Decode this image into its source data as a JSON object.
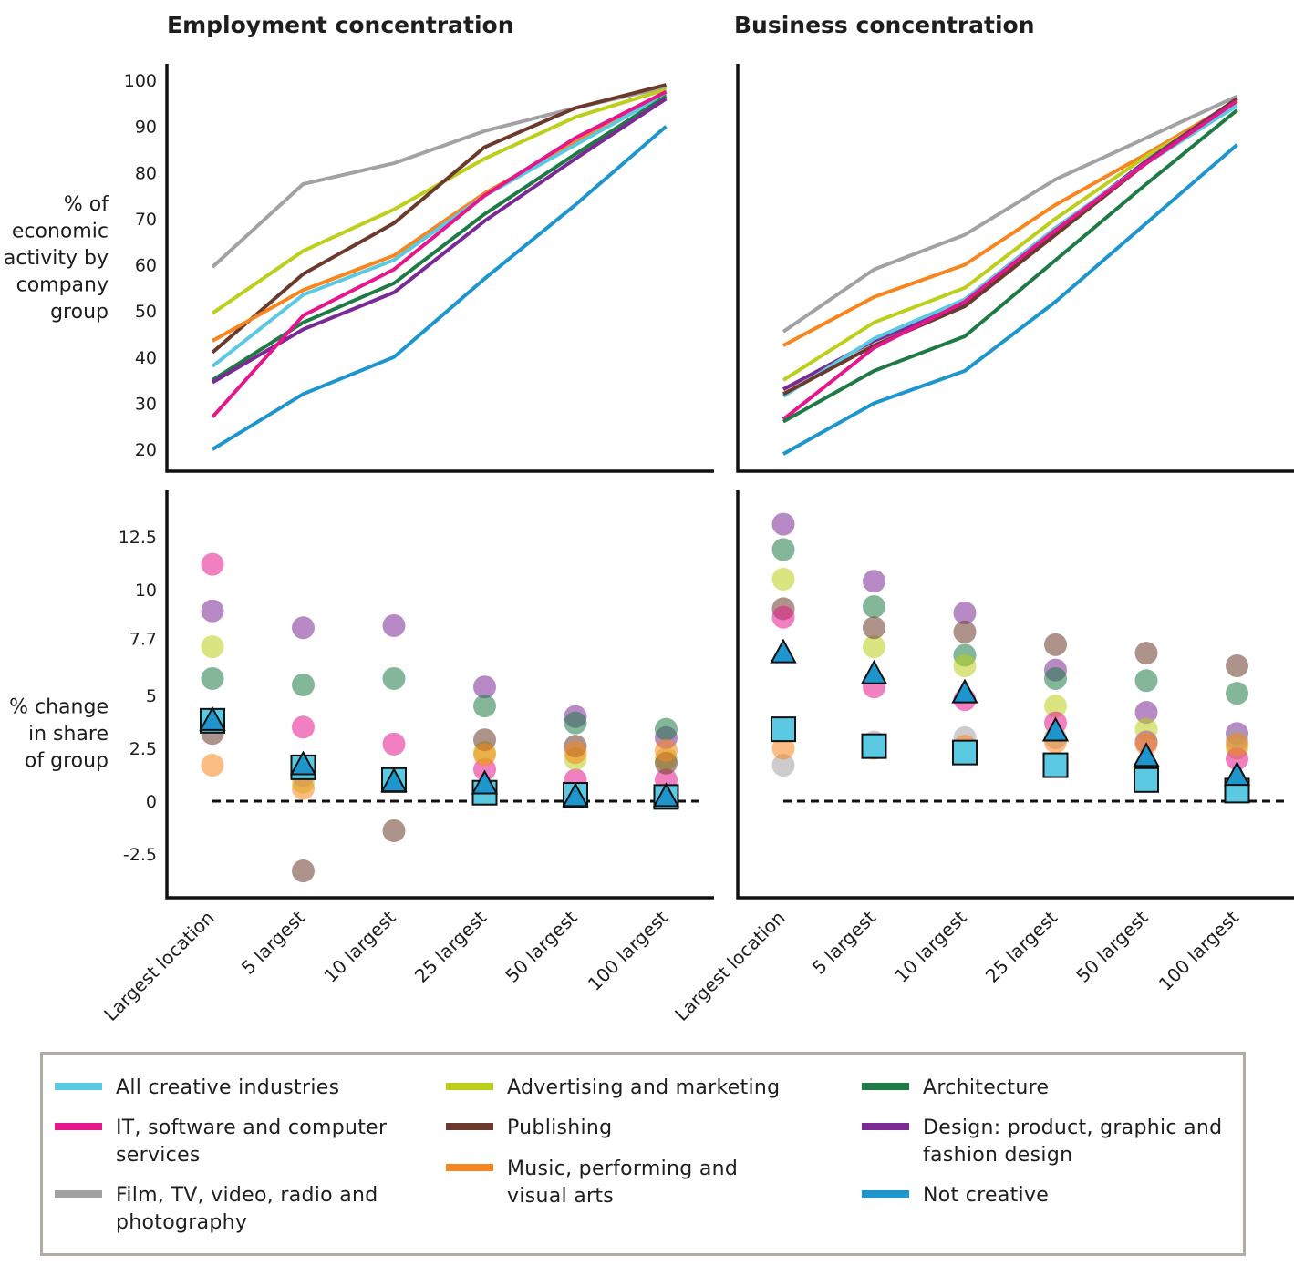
{
  "colors": {
    "all": "#5bc9e1",
    "it": "#e5178c",
    "film": "#a2a2a5",
    "adv": "#bccf1a",
    "pub": "#6c3a2c",
    "music": "#f7861e",
    "arch": "#1f7a45",
    "design": "#7b2a95",
    "notcreative": "#1e96cd"
  },
  "legend": [
    {
      "key": "all",
      "label": "All creative industries"
    },
    {
      "key": "it",
      "label": "IT, software and computer services"
    },
    {
      "key": "film",
      "label": "Film, TV, video, radio and photography"
    },
    {
      "key": "adv",
      "label": "Advertising and marketing"
    },
    {
      "key": "pub",
      "label": "Publishing"
    },
    {
      "key": "music",
      "label": "Music, performing and visual arts"
    },
    {
      "key": "arch",
      "label": "Architecture"
    },
    {
      "key": "design",
      "label": "Design: product, graphic and fashion design"
    },
    {
      "key": "notcreative",
      "label": "Not creative"
    }
  ],
  "chart_data": [
    {
      "type": "line",
      "title": "Employment concentration",
      "ylabel": "% of economic activity by company group",
      "ylim": [
        20,
        100
      ],
      "yticks": [
        "20",
        "30",
        "40",
        "50",
        "60",
        "70",
        "80",
        "90",
        "100"
      ],
      "categories": [
        "Largest location",
        "5 largest",
        "10 largest",
        "25 largest",
        "50 largest",
        "100 largest"
      ],
      "series": [
        {
          "key": "film",
          "name": "Film, TV, video, radio and photography",
          "values": [
            59.5,
            77.5,
            82,
            89,
            94,
            98.5
          ]
        },
        {
          "key": "adv",
          "name": "Advertising and marketing",
          "values": [
            49.5,
            63,
            72,
            83,
            92,
            98
          ]
        },
        {
          "key": "pub",
          "name": "Publishing",
          "values": [
            41,
            58,
            69,
            85.5,
            94,
            99
          ]
        },
        {
          "key": "music",
          "name": "Music, performing and visual arts",
          "values": [
            43.5,
            54.5,
            62,
            75.5,
            86.5,
            97.5
          ]
        },
        {
          "key": "all",
          "name": "All creative industries",
          "values": [
            38,
            53.5,
            61,
            75,
            86,
            97
          ]
        },
        {
          "key": "arch",
          "name": "Architecture",
          "values": [
            35,
            47.5,
            56,
            71,
            84,
            96.5
          ]
        },
        {
          "key": "design",
          "name": "Design: product, graphic and fashion design",
          "values": [
            34.5,
            46,
            54,
            69.5,
            83,
            96
          ]
        },
        {
          "key": "it",
          "name": "IT, software and computer services",
          "values": [
            27,
            49,
            59,
            75,
            87.5,
            97.5
          ]
        },
        {
          "key": "notcreative",
          "name": "Not creative",
          "values": [
            20,
            32,
            40,
            57,
            73,
            90
          ]
        }
      ]
    },
    {
      "type": "line",
      "title": "Business concentration",
      "ylim": [
        20,
        100
      ],
      "categories": [
        "Largest location",
        "5 largest",
        "10 largest",
        "25 largest",
        "50 largest",
        "100 largest"
      ],
      "series": [
        {
          "key": "film",
          "name": "Film, TV, video, radio and photography",
          "values": [
            45.5,
            59,
            66.5,
            78.5,
            87.5,
            96.5
          ]
        },
        {
          "key": "music",
          "name": "Music, performing and visual arts",
          "values": [
            42.5,
            53,
            60,
            73,
            84,
            95.5
          ]
        },
        {
          "key": "adv",
          "name": "Advertising and marketing",
          "values": [
            35,
            47.5,
            55,
            70,
            83.5,
            95
          ]
        },
        {
          "key": "design",
          "name": "Design: product, graphic and fashion design",
          "values": [
            33,
            43.5,
            51.5,
            67.5,
            82.5,
            96
          ]
        },
        {
          "key": "all",
          "name": "All creative industries",
          "values": [
            31.5,
            44,
            52.5,
            68,
            82,
            94.5
          ]
        },
        {
          "key": "pub",
          "name": "Publishing",
          "values": [
            32,
            42.5,
            51,
            66.5,
            82,
            96
          ]
        },
        {
          "key": "it",
          "name": "IT, software and computer services",
          "values": [
            26.5,
            42,
            52,
            67.5,
            82,
            95.5
          ]
        },
        {
          "key": "arch",
          "name": "Architecture",
          "values": [
            26,
            37,
            44.5,
            61,
            77.5,
            93.5
          ]
        },
        {
          "key": "notcreative",
          "name": "Not creative",
          "values": [
            19,
            30,
            37,
            52,
            69,
            86
          ]
        }
      ]
    },
    {
      "type": "scatter",
      "ylabel": "% change in share of group",
      "ylim": [
        -4.5,
        15
      ],
      "yticks": [
        "-2.5",
        "0",
        "2.5",
        "5",
        "7.7",
        "10",
        "12.5"
      ],
      "baseline": 0,
      "categories": [
        "Largest location",
        "5 largest",
        "10 largest",
        "25 largest",
        "50 largest",
        "100 largest"
      ],
      "series": [
        {
          "key": "it",
          "name": "IT, software and computer services",
          "values": [
            11.2,
            3.5,
            2.7,
            1.5,
            1.0,
            1.0
          ]
        },
        {
          "key": "design",
          "name": "Design: product, graphic and fashion design",
          "values": [
            9.0,
            8.2,
            8.3,
            5.4,
            4.0,
            3.0
          ]
        },
        {
          "key": "adv",
          "name": "Advertising and marketing",
          "values": [
            7.3,
            0.9,
            1.0,
            2.3,
            2.0,
            2.0
          ]
        },
        {
          "key": "arch",
          "name": "Architecture",
          "values": [
            5.8,
            5.5,
            5.8,
            4.5,
            3.7,
            3.4
          ]
        },
        {
          "key": "pub",
          "name": "Publishing",
          "values": [
            3.2,
            -3.3,
            -1.4,
            2.9,
            2.6,
            1.8
          ]
        },
        {
          "key": "film",
          "name": "Film, TV, video, radio and photography",
          "values": [
            3.6,
            1.2,
            1.0,
            0.5,
            0.2,
            0.2
          ]
        },
        {
          "key": "music",
          "name": "Music, performing and visual arts",
          "values": [
            1.7,
            0.6,
            1.0,
            2.2,
            2.3,
            2.4
          ]
        },
        {
          "key": "all",
          "name": "All creative industries",
          "values": [
            3.8,
            1.6,
            1.0,
            0.4,
            0.3,
            0.2
          ]
        },
        {
          "key": "notcreative",
          "name": "Not creative",
          "values": [
            3.8,
            1.7,
            0.9,
            0.8,
            0.2,
            0.2
          ]
        }
      ]
    },
    {
      "type": "scatter",
      "ylim": [
        -4.5,
        15
      ],
      "baseline": 0,
      "categories": [
        "Largest location",
        "5 largest",
        "10 largest",
        "25 largest",
        "50 largest",
        "100 largest"
      ],
      "series": [
        {
          "key": "design",
          "name": "Design: product, graphic and fashion design",
          "values": [
            13.1,
            10.4,
            8.9,
            6.2,
            4.2,
            3.2
          ]
        },
        {
          "key": "arch",
          "name": "Architecture",
          "values": [
            11.9,
            9.2,
            6.9,
            5.8,
            5.7,
            5.1
          ]
        },
        {
          "key": "adv",
          "name": "Advertising and marketing",
          "values": [
            10.5,
            7.3,
            6.4,
            4.5,
            3.4,
            2.5
          ]
        },
        {
          "key": "pub",
          "name": "Publishing",
          "values": [
            9.1,
            8.2,
            8.0,
            7.4,
            7.0,
            6.4
          ]
        },
        {
          "key": "it",
          "name": "IT, software and computer services",
          "values": [
            8.7,
            5.4,
            4.8,
            3.7,
            2.8,
            2.0
          ]
        },
        {
          "key": "film",
          "name": "Film, TV, video, radio and photography",
          "values": [
            1.7,
            2.8,
            3.0,
            3.0,
            2.8,
            2.9
          ]
        },
        {
          "key": "music",
          "name": "Music, performing and visual arts",
          "values": [
            2.5,
            2.5,
            2.6,
            2.8,
            2.7,
            2.7
          ]
        },
        {
          "key": "all",
          "name": "All creative industries",
          "values": [
            3.4,
            2.6,
            2.3,
            1.7,
            1.0,
            0.5
          ]
        },
        {
          "key": "notcreative",
          "name": "Not creative",
          "values": [
            7.0,
            6.0,
            5.1,
            3.3,
            2.1,
            1.2
          ]
        }
      ]
    }
  ]
}
